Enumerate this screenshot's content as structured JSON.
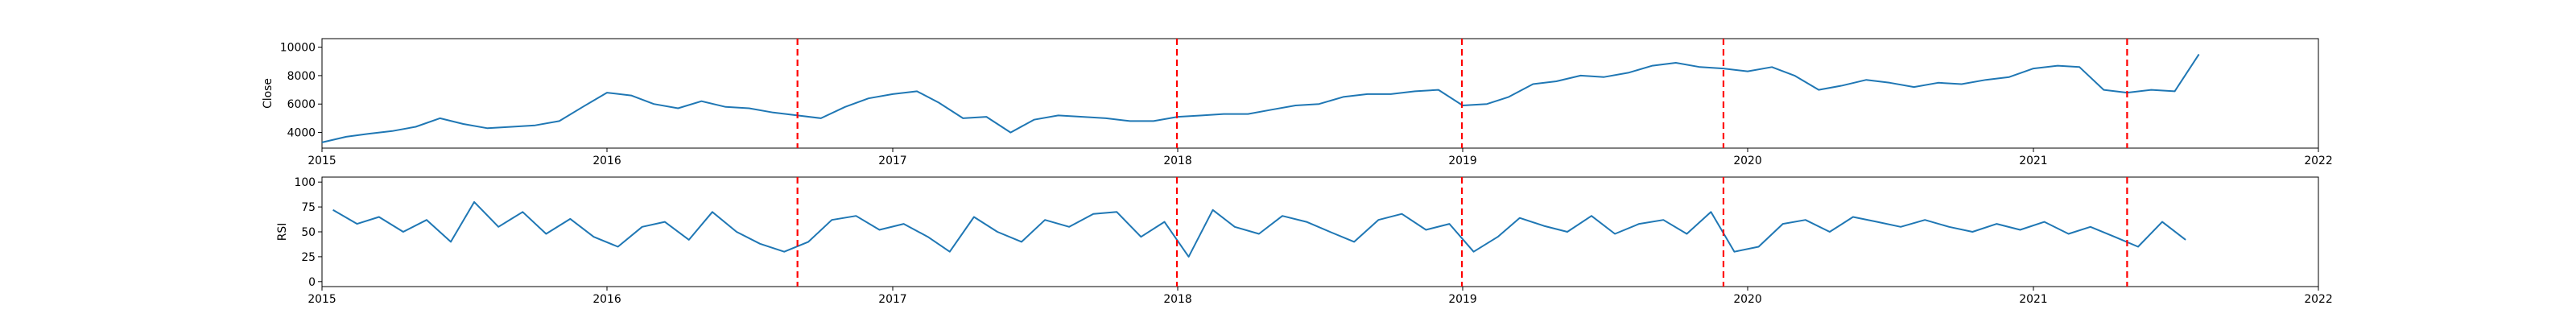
{
  "chart_data": [
    {
      "type": "line",
      "ylabel": "Close",
      "xlabel": "",
      "title": "",
      "xlim": [
        "2015-01-01",
        "2022-01-01"
      ],
      "ylim": [
        2900,
        10600
      ],
      "yticks": [
        4000,
        6000,
        8000,
        10000
      ],
      "xticks": [
        "2015",
        "2016",
        "2017",
        "2018",
        "2019",
        "2020",
        "2021",
        "2022"
      ],
      "line_color": "#1f77b4",
      "series": [
        {
          "x": [
            "2015-01-01",
            "2015-02-01",
            "2015-03-01",
            "2015-04-01",
            "2015-05-01",
            "2015-06-01",
            "2015-07-01",
            "2015-08-01",
            "2015-09-01",
            "2015-10-01",
            "2015-11-01",
            "2015-12-01",
            "2016-01-01",
            "2016-02-01",
            "2016-03-01",
            "2016-04-01",
            "2016-05-01",
            "2016-06-01",
            "2016-07-01",
            "2016-08-01",
            "2016-09-01",
            "2016-10-01",
            "2016-11-01",
            "2016-12-01",
            "2017-01-01",
            "2017-02-01",
            "2017-03-01",
            "2017-04-01",
            "2017-05-01",
            "2017-06-01",
            "2017-07-01",
            "2017-08-01",
            "2017-09-01",
            "2017-10-01",
            "2017-11-01",
            "2017-12-01",
            "2018-01-01",
            "2018-02-01",
            "2018-03-01",
            "2018-04-01",
            "2018-05-01",
            "2018-06-01",
            "2018-07-01",
            "2018-08-01",
            "2018-09-01",
            "2018-10-01",
            "2018-11-01",
            "2018-12-01",
            "2019-01-01",
            "2019-02-01",
            "2019-03-01",
            "2019-04-01",
            "2019-05-01",
            "2019-06-01",
            "2019-07-01",
            "2019-08-01",
            "2019-09-01",
            "2019-10-01",
            "2019-11-01",
            "2019-12-01",
            "2020-01-01",
            "2020-02-01",
            "2020-03-01",
            "2020-04-01",
            "2020-05-01",
            "2020-06-01",
            "2020-07-01",
            "2020-08-01",
            "2020-09-01",
            "2020-10-01",
            "2020-11-01",
            "2020-12-01",
            "2021-01-01",
            "2021-02-01",
            "2021-03-01",
            "2021-04-01",
            "2021-05-01",
            "2021-06-01",
            "2021-07-01",
            "2021-08-01"
          ],
          "values": [
            3300,
            3700,
            3900,
            4100,
            4400,
            5000,
            4600,
            4300,
            4400,
            4500,
            4800,
            5800,
            6800,
            6600,
            6000,
            5700,
            6200,
            5800,
            5700,
            5400,
            5200,
            5000,
            5800,
            6400,
            6700,
            6900,
            6100,
            5000,
            5100,
            4000,
            4900,
            5200,
            5100,
            5000,
            4800,
            4800,
            5100,
            5200,
            5300,
            5300,
            5600,
            5900,
            6000,
            6500,
            6700,
            6700,
            6900,
            7000,
            5900,
            6000,
            6500,
            7400,
            7600,
            8000,
            7900,
            8200,
            8700,
            8900,
            8600,
            8500,
            8300,
            8600,
            8000,
            7000,
            7300,
            7700,
            7500,
            7200,
            7500,
            7400,
            7700,
            7900,
            8500,
            8700,
            8600,
            7000,
            6800,
            7000,
            6900,
            9500
          ]
        }
      ],
      "events": [
        "2016-09-01",
        "2017-12-31",
        "2018-12-31",
        "2019-12-01",
        "2021-05-01"
      ],
      "event_color": "#ff0000",
      "grid": false,
      "legend": "none"
    },
    {
      "type": "line",
      "ylabel": "RSI",
      "xlabel": "",
      "title": "",
      "xlim": [
        "2015-01-01",
        "2022-01-01"
      ],
      "ylim": [
        -5,
        105
      ],
      "yticks": [
        0,
        25,
        50,
        75,
        100
      ],
      "xticks": [
        "2015",
        "2016",
        "2017",
        "2018",
        "2019",
        "2020",
        "2021",
        "2022"
      ],
      "line_color": "#1f77b4",
      "series": [
        {
          "x": [
            "2015-01-15",
            "2015-02-15",
            "2015-03-15",
            "2015-04-15",
            "2015-05-15",
            "2015-06-15",
            "2015-07-15",
            "2015-08-15",
            "2015-09-15",
            "2015-10-15",
            "2015-11-15",
            "2015-12-15",
            "2016-01-15",
            "2016-02-15",
            "2016-03-15",
            "2016-04-15",
            "2016-05-15",
            "2016-06-15",
            "2016-07-15",
            "2016-08-15",
            "2016-09-15",
            "2016-10-15",
            "2016-11-15",
            "2016-12-15",
            "2017-01-15",
            "2017-02-15",
            "2017-03-15",
            "2017-04-15",
            "2017-05-15",
            "2017-06-15",
            "2017-07-15",
            "2017-08-15",
            "2017-09-15",
            "2017-10-15",
            "2017-11-15",
            "2017-12-15",
            "2018-01-15",
            "2018-02-15",
            "2018-03-15",
            "2018-04-15",
            "2018-05-15",
            "2018-06-15",
            "2018-07-15",
            "2018-08-15",
            "2018-09-15",
            "2018-10-15",
            "2018-11-15",
            "2018-12-15",
            "2019-01-15",
            "2019-02-15",
            "2019-03-15",
            "2019-04-15",
            "2019-05-15",
            "2019-06-15",
            "2019-07-15",
            "2019-08-15",
            "2019-09-15",
            "2019-10-15",
            "2019-11-15",
            "2019-12-15",
            "2020-01-15",
            "2020-02-15",
            "2020-03-15",
            "2020-04-15",
            "2020-05-15",
            "2020-06-15",
            "2020-07-15",
            "2020-08-15",
            "2020-09-15",
            "2020-10-15",
            "2020-11-15",
            "2020-12-15",
            "2021-01-15",
            "2021-02-15",
            "2021-03-15",
            "2021-04-15",
            "2021-05-15",
            "2021-06-15",
            "2021-07-15"
          ],
          "values": [
            72,
            58,
            65,
            50,
            62,
            40,
            80,
            55,
            70,
            48,
            63,
            45,
            35,
            55,
            60,
            42,
            70,
            50,
            38,
            30,
            40,
            62,
            66,
            52,
            58,
            45,
            30,
            65,
            50,
            40,
            62,
            55,
            68,
            70,
            45,
            60,
            25,
            72,
            55,
            48,
            66,
            60,
            50,
            40,
            62,
            68,
            52,
            58,
            30,
            45,
            64,
            56,
            50,
            66,
            48,
            58,
            62,
            48,
            70,
            30,
            35,
            58,
            62,
            50,
            65,
            60,
            55,
            62,
            55,
            50,
            58,
            52,
            60,
            48,
            55,
            45,
            35,
            60,
            42
          ]
        }
      ],
      "events": [
        "2016-09-01",
        "2017-12-31",
        "2018-12-31",
        "2019-12-01",
        "2021-05-01"
      ],
      "event_color": "#ff0000",
      "grid": false,
      "legend": "none"
    }
  ]
}
